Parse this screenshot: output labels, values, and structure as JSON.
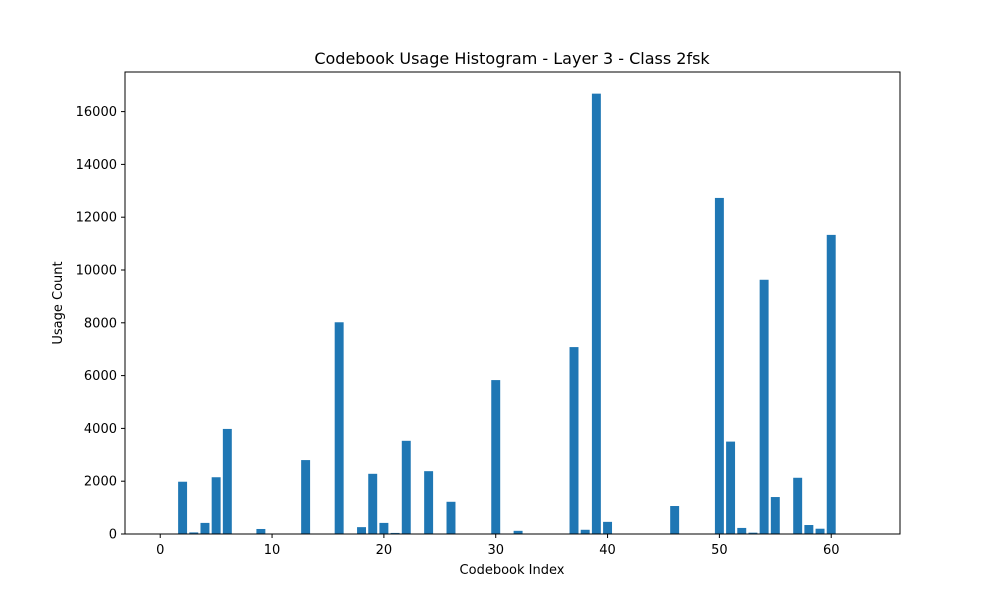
{
  "chart_data": {
    "type": "bar",
    "title": "Codebook Usage Histogram - Layer 3 - Class 2fsk",
    "xlabel": "Codebook Index",
    "ylabel": "Usage Count",
    "xlim": [
      -3.15,
      66.15
    ],
    "ylim": [
      0,
      17500
    ],
    "xticks": [
      0,
      10,
      20,
      30,
      40,
      50,
      60
    ],
    "yticks": [
      0,
      2000,
      4000,
      6000,
      8000,
      10000,
      12000,
      14000,
      16000
    ],
    "grid": false,
    "bar_color": "#1f77b4",
    "x": [
      2,
      3,
      4,
      5,
      6,
      9,
      13,
      16,
      18,
      19,
      20,
      21,
      22,
      24,
      26,
      30,
      32,
      37,
      38,
      39,
      40,
      46,
      50,
      51,
      52,
      53,
      54,
      55,
      57,
      58,
      59,
      60
    ],
    "values": [
      1980,
      60,
      420,
      2150,
      3980,
      190,
      2800,
      8020,
      260,
      2280,
      420,
      40,
      3530,
      2380,
      1220,
      5830,
      120,
      7080,
      160,
      16680,
      460,
      1060,
      12730,
      3500,
      230,
      50,
      9630,
      1400,
      2130,
      340,
      200,
      11330
    ]
  }
}
